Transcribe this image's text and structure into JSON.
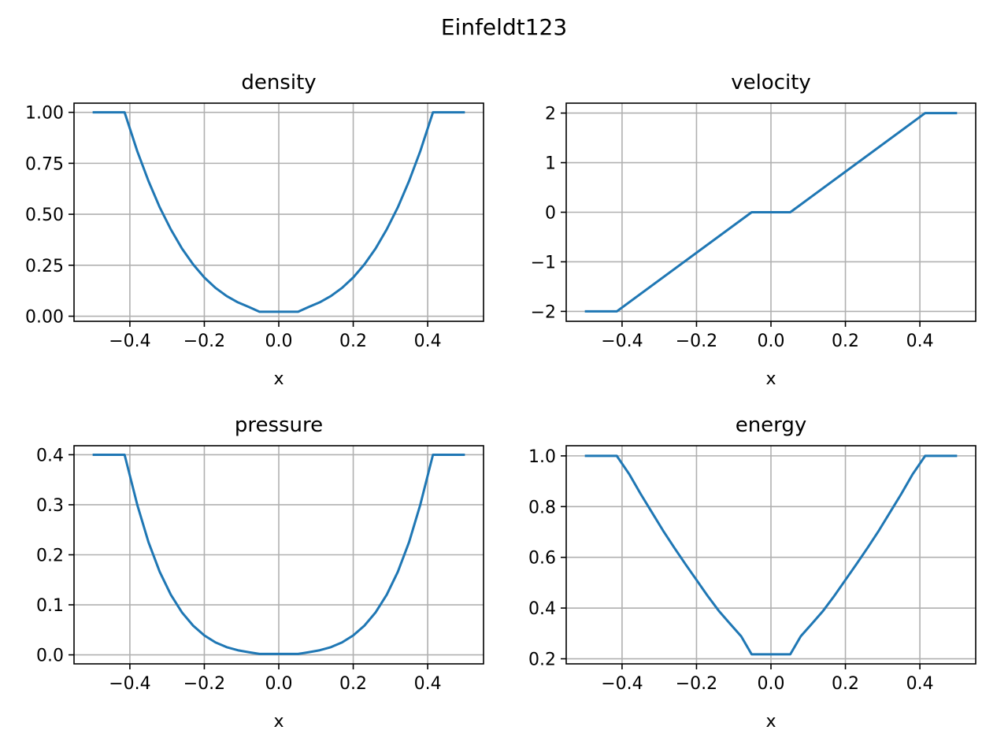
{
  "suptitle": "Einfeldt123",
  "colors": {
    "line": "#1f77b4",
    "grid": "#b0b0b0",
    "axes": "#000000"
  },
  "chart_data": [
    {
      "type": "line",
      "title": "density",
      "xlabel": "x",
      "ylabel": "",
      "grid": true,
      "xlim": [
        -0.55,
        0.55
      ],
      "ylim": [
        -0.025,
        1.045
      ],
      "xticks": [
        -0.4,
        -0.2,
        0.0,
        0.2,
        0.4
      ],
      "xtick_labels": [
        "−0.4",
        "−0.2",
        "0.0",
        "0.2",
        "0.4"
      ],
      "yticks": [
        0.0,
        0.25,
        0.5,
        0.75,
        1.0
      ],
      "ytick_labels": [
        "0.00",
        "0.25",
        "0.50",
        "0.75",
        "1.00"
      ],
      "series": [
        {
          "x": [
            -0.5,
            -0.4142,
            -0.38,
            -0.35,
            -0.32,
            -0.29,
            -0.26,
            -0.23,
            -0.2,
            -0.17,
            -0.14,
            -0.11,
            -0.08,
            -0.0519,
            0.0519,
            0.08,
            0.11,
            0.14,
            0.17,
            0.2,
            0.23,
            0.26,
            0.29,
            0.32,
            0.35,
            0.38,
            0.4142,
            0.5
          ],
          "y": [
            1.0,
            1.0,
            0.809,
            0.663,
            0.535,
            0.426,
            0.332,
            0.254,
            0.19,
            0.139,
            0.099,
            0.068,
            0.045,
            0.0218,
            0.0218,
            0.045,
            0.068,
            0.099,
            0.139,
            0.19,
            0.254,
            0.332,
            0.426,
            0.535,
            0.663,
            0.809,
            1.0,
            1.0
          ]
        }
      ]
    },
    {
      "type": "line",
      "title": "velocity",
      "xlabel": "x",
      "ylabel": "",
      "grid": true,
      "xlim": [
        -0.55,
        0.55
      ],
      "ylim": [
        -2.2,
        2.2
      ],
      "xticks": [
        -0.4,
        -0.2,
        0.0,
        0.2,
        0.4
      ],
      "xtick_labels": [
        "−0.4",
        "−0.2",
        "0.0",
        "0.2",
        "0.4"
      ],
      "yticks": [
        -2,
        -1,
        0,
        1,
        2
      ],
      "ytick_labels": [
        "−2",
        "−1",
        "0",
        "1",
        "2"
      ],
      "series": [
        {
          "x": [
            -0.5,
            -0.4142,
            -0.0519,
            0.0519,
            0.4142,
            0.5
          ],
          "y": [
            -2.0,
            -2.0,
            0.0,
            0.0,
            2.0,
            2.0
          ]
        }
      ]
    },
    {
      "type": "line",
      "title": "pressure",
      "xlabel": "x",
      "ylabel": "",
      "grid": true,
      "xlim": [
        -0.55,
        0.55
      ],
      "ylim": [
        -0.018,
        0.418
      ],
      "xticks": [
        -0.4,
        -0.2,
        0.0,
        0.2,
        0.4
      ],
      "xtick_labels": [
        "−0.4",
        "−0.2",
        "0.0",
        "0.2",
        "0.4"
      ],
      "yticks": [
        0.0,
        0.1,
        0.2,
        0.3,
        0.4
      ],
      "ytick_labels": [
        "0.0",
        "0.1",
        "0.2",
        "0.3",
        "0.4"
      ],
      "series": [
        {
          "x": [
            -0.5,
            -0.4142,
            -0.38,
            -0.35,
            -0.32,
            -0.29,
            -0.26,
            -0.23,
            -0.2,
            -0.17,
            -0.14,
            -0.11,
            -0.08,
            -0.0519,
            0.0519,
            0.08,
            0.11,
            0.14,
            0.17,
            0.2,
            0.23,
            0.26,
            0.29,
            0.32,
            0.35,
            0.38,
            0.4142,
            0.5
          ],
          "y": [
            0.4,
            0.4,
            0.2997,
            0.2253,
            0.1663,
            0.1202,
            0.0848,
            0.0583,
            0.0388,
            0.0249,
            0.0154,
            0.0092,
            0.0052,
            0.0019,
            0.0019,
            0.0052,
            0.0092,
            0.0154,
            0.0249,
            0.0388,
            0.0583,
            0.0848,
            0.1202,
            0.1663,
            0.2253,
            0.2997,
            0.4,
            0.4
          ]
        }
      ]
    },
    {
      "type": "line",
      "title": "energy",
      "xlabel": "x",
      "ylabel": "",
      "grid": true,
      "xlim": [
        -0.55,
        0.55
      ],
      "ylim": [
        0.18,
        1.04
      ],
      "xticks": [
        -0.4,
        -0.2,
        0.0,
        0.2,
        0.4
      ],
      "xtick_labels": [
        "−0.4",
        "−0.2",
        "0.0",
        "0.2",
        "0.4"
      ],
      "yticks": [
        0.2,
        0.4,
        0.6,
        0.8,
        1.0
      ],
      "ytick_labels": [
        "0.2",
        "0.4",
        "0.6",
        "0.8",
        "1.0"
      ],
      "series": [
        {
          "x": [
            -0.5,
            -0.4142,
            -0.38,
            -0.35,
            -0.32,
            -0.29,
            -0.26,
            -0.23,
            -0.2,
            -0.17,
            -0.14,
            -0.11,
            -0.08,
            -0.0519,
            0.0519,
            0.08,
            0.11,
            0.14,
            0.17,
            0.2,
            0.23,
            0.26,
            0.29,
            0.32,
            0.35,
            0.38,
            0.4142,
            0.5
          ],
          "y": [
            1.0,
            1.0,
            0.9264,
            0.8498,
            0.7778,
            0.7058,
            0.6386,
            0.5738,
            0.5108,
            0.4478,
            0.3889,
            0.3382,
            0.2888,
            0.2178,
            0.2178,
            0.2888,
            0.3382,
            0.3889,
            0.4478,
            0.5108,
            0.5738,
            0.6386,
            0.7058,
            0.7778,
            0.8498,
            0.9264,
            1.0,
            1.0
          ]
        }
      ]
    }
  ]
}
